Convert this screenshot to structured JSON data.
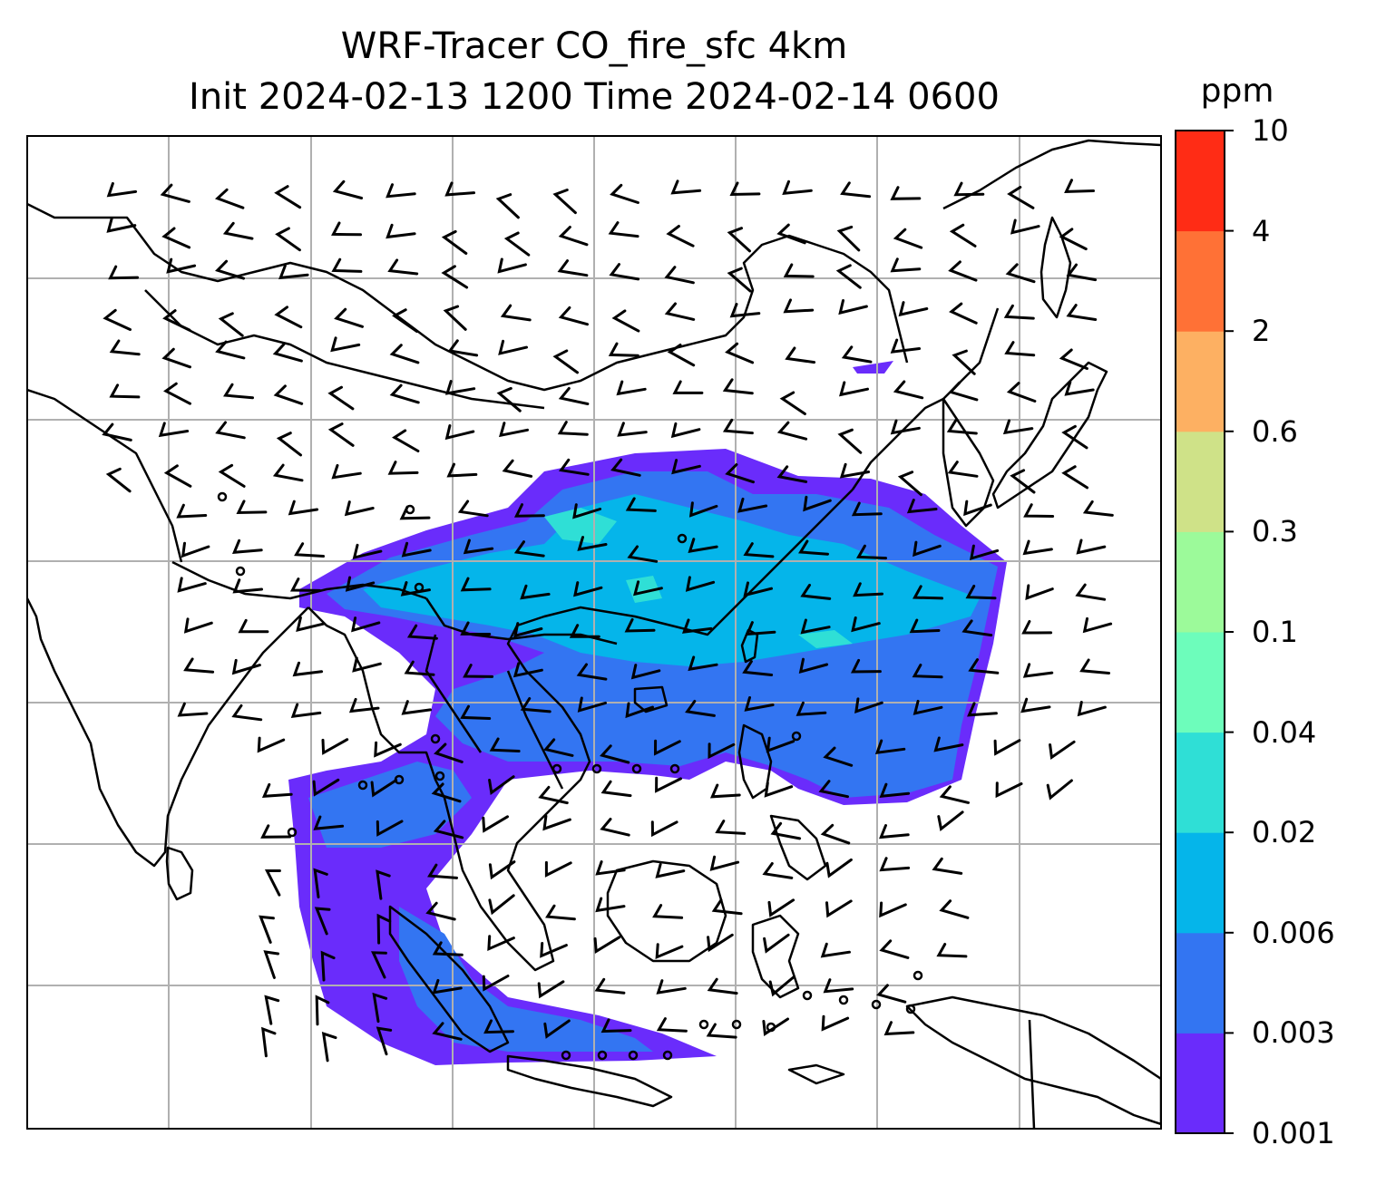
{
  "title": {
    "line1": "WRF-Tracer CO_fire_sfc 4km",
    "line2": "Init 2024-02-13 1200 Time 2024-02-14 0600"
  },
  "colorbar": {
    "unit": "ppm",
    "levels": [
      "0.001",
      "0.003",
      "0.006",
      "0.02",
      "0.04",
      "0.1",
      "0.3",
      "0.6",
      "2",
      "4",
      "10"
    ],
    "colors": [
      "#6a2cfb",
      "#3375f2",
      "#05b5ea",
      "#2fdfd6",
      "#6dfdbb",
      "#9cfa9a",
      "#cfe288",
      "#fdb062",
      "#ff7136",
      "#ff2c15"
    ]
  },
  "map": {
    "gridlines": true,
    "features": [
      "coastlines",
      "country-borders",
      "wind-barbs",
      "fire-co-plume"
    ]
  }
}
